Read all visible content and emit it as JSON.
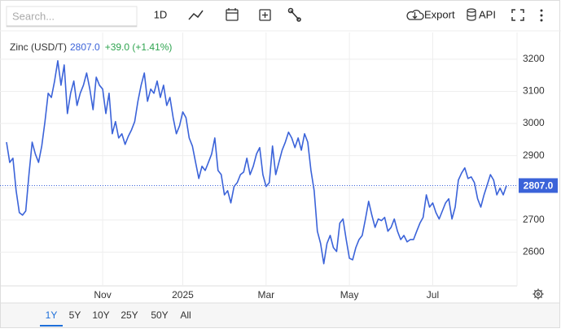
{
  "toolbar": {
    "search_placeholder": "Search...",
    "interval": "1D",
    "export": "Export",
    "api": "API"
  },
  "ranges": [
    "1Y",
    "5Y",
    "10Y",
    "25Y",
    "50Y",
    "All"
  ],
  "chart_data": {
    "type": "line",
    "change": "+39.0 (+1.41%)",
    "current": {
      "value": 2807,
      "label": "2807.0"
    },
    "categories": [
      null,
      null,
      null,
      null,
      null,
      null,
      null,
      null,
      null,
      null,
      null,
      null,
      null,
      null,
      null,
      null,
      null,
      null,
      null,
      null,
      null,
      null,
      null,
      null,
      null,
      null,
      null,
      null,
      null,
      null,
      "Nov",
      null,
      null,
      null,
      null,
      null,
      null,
      null,
      null,
      null,
      null,
      null,
      null,
      null,
      null,
      null,
      null,
      null,
      null,
      null,
      null,
      null,
      null,
      null,
      null,
      "2025",
      null,
      null,
      null,
      null,
      null,
      null,
      null,
      null,
      null,
      null,
      null,
      null,
      null,
      null,
      null,
      null,
      null,
      null,
      null,
      null,
      null,
      null,
      null,
      null,
      null,
      "Mar",
      null,
      null,
      null,
      null,
      null,
      null,
      null,
      null,
      null,
      null,
      null,
      null,
      null,
      null,
      null,
      null,
      null,
      null,
      null,
      null,
      null,
      null,
      null,
      null,
      null,
      "May",
      null,
      null,
      null,
      null,
      null,
      null,
      null,
      null,
      null,
      null,
      null,
      null,
      null,
      null,
      null,
      null,
      null,
      null,
      null,
      null,
      null,
      null,
      null,
      null,
      null,
      "Jul",
      null,
      null,
      null,
      null,
      null,
      null,
      null,
      null,
      null,
      null,
      null,
      null,
      null,
      null,
      null,
      null,
      null,
      null,
      null,
      null,
      null,
      null,
      null
    ],
    "series": [
      {
        "name": "Zinc (USD/T)",
        "color": "#3b63d9",
        "values": [
          2942,
          2879,
          2892,
          2791,
          2723,
          2715,
          2728,
          2841,
          2942,
          2905,
          2879,
          2930,
          3006,
          3094,
          3081,
          3132,
          3195,
          3119,
          3182,
          3031,
          3094,
          3132,
          3056,
          3094,
          3119,
          3157,
          3107,
          3043,
          3144,
          3119,
          3107,
          3031,
          3094,
          2968,
          3006,
          2955,
          2968,
          2935,
          2960,
          2980,
          3006,
          3069,
          3119,
          3157,
          3069,
          3107,
          3094,
          3132,
          3081,
          3119,
          3056,
          3081,
          3018,
          2968,
          2993,
          3036,
          3018,
          2955,
          2930,
          2879,
          2829,
          2867,
          2854,
          2879,
          2905,
          2955,
          2854,
          2841,
          2778,
          2791,
          2753,
          2804,
          2816,
          2841,
          2849,
          2892,
          2841,
          2867,
          2905,
          2925,
          2841,
          2804,
          2816,
          2930,
          2841,
          2879,
          2917,
          2942,
          2973,
          2955,
          2925,
          2955,
          2917,
          2968,
          2942,
          2854,
          2791,
          2665,
          2627,
          2564,
          2627,
          2652,
          2614,
          2602,
          2690,
          2703,
          2639,
          2581,
          2576,
          2614,
          2639,
          2652,
          2703,
          2758,
          2715,
          2677,
          2703,
          2698,
          2708,
          2665,
          2677,
          2703,
          2665,
          2639,
          2652,
          2632,
          2639,
          2639,
          2665,
          2690,
          2708,
          2778,
          2740,
          2753,
          2723,
          2703,
          2728,
          2753,
          2766,
          2703,
          2740,
          2824,
          2846,
          2862,
          2829,
          2834,
          2816,
          2766,
          2740,
          2778,
          2809,
          2841,
          2824,
          2778,
          2799,
          2778,
          2807
        ]
      }
    ],
    "ylim": [
      2495,
      3283
    ],
    "yticks": [
      2600,
      2700,
      2800,
      2900,
      3000,
      3100,
      3200
    ],
    "grid": true
  }
}
